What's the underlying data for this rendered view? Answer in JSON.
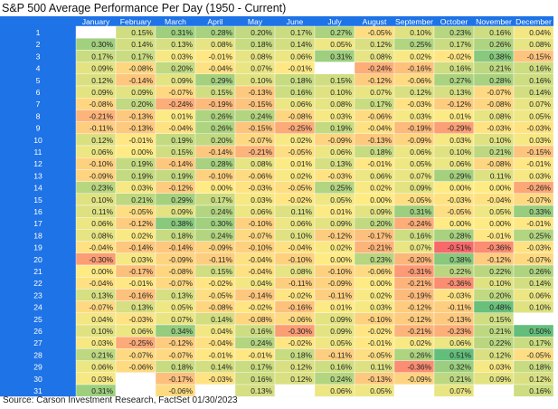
{
  "chart_data": {
    "type": "heatmap",
    "title": "S&P 500 Average Performance Per Day (1950 - Current)",
    "source": "Source: Carson Investment Research, FactSet 01/30/2023",
    "months": [
      "January",
      "February",
      "March",
      "April",
      "May",
      "June",
      "July",
      "August",
      "September",
      "October",
      "November",
      "December"
    ],
    "days": [
      "1",
      "2",
      "3",
      "4",
      "5",
      "6",
      "7",
      "8",
      "9",
      "10",
      "11",
      "12",
      "13",
      "14",
      "15",
      "16",
      "17",
      "18",
      "19",
      "20",
      "21",
      "22",
      "23",
      "24",
      "25",
      "26",
      "27",
      "28",
      "29",
      "30",
      "31"
    ],
    "values": [
      [
        null,
        "0.15%",
        "0.31%",
        "0.28%",
        "0.20%",
        "0.17%",
        "0.27%",
        "-0.05%",
        "0.10%",
        "0.23%",
        "0.16%",
        "0.04%"
      ],
      [
        "0.30%",
        "0.14%",
        "0.13%",
        "0.08%",
        "0.18%",
        "0.14%",
        "0.05%",
        "0.12%",
        "0.25%",
        "0.17%",
        "0.26%",
        "0.08%"
      ],
      [
        "0.17%",
        "0.17%",
        "0.03%",
        "-0.01%",
        "0.08%",
        "0.06%",
        "0.31%",
        "0.08%",
        "0.02%",
        "-0.02%",
        "0.38%",
        "-0.15%"
      ],
      [
        "0.09%",
        "-0.08%",
        "0.20%",
        "-0.04%",
        "0.07%",
        "-0.01%",
        null,
        "-0.24%",
        "-0.16%",
        "0.16%",
        "0.21%",
        "0.16%"
      ],
      [
        "0.12%",
        "-0.14%",
        "0.09%",
        "0.29%",
        "0.10%",
        "0.18%",
        "0.15%",
        "-0.12%",
        "-0.06%",
        "0.27%",
        "0.28%",
        "0.16%"
      ],
      [
        "0.09%",
        "0.09%",
        "-0.07%",
        "0.15%",
        "-0.13%",
        "0.16%",
        "0.10%",
        "0.07%",
        "0.12%",
        "0.13%",
        "-0.07%",
        "0.14%"
      ],
      [
        "-0.08%",
        "0.20%",
        "-0.24%",
        "-0.19%",
        "-0.15%",
        "0.06%",
        "0.08%",
        "0.17%",
        "-0.03%",
        "-0.12%",
        "-0.08%",
        "0.07%"
      ],
      [
        "-0.21%",
        "-0.13%",
        "0.01%",
        "0.26%",
        "0.24%",
        "-0.08%",
        "0.03%",
        "-0.06%",
        "0.03%",
        "0.01%",
        "0.08%",
        "0.05%"
      ],
      [
        "-0.11%",
        "-0.13%",
        "-0.04%",
        "0.26%",
        "-0.15%",
        "-0.25%",
        "0.19%",
        "-0.04%",
        "-0.19%",
        "-0.29%",
        "-0.03%",
        "-0.03%"
      ],
      [
        "0.12%",
        "-0.01%",
        "0.19%",
        "0.20%",
        "-0.07%",
        "0.02%",
        "-0.09%",
        "-0.13%",
        "-0.09%",
        "0.03%",
        "0.10%",
        "0.03%"
      ],
      [
        "0.06%",
        "0.00%",
        "0.15%",
        "-0.14%",
        "-0.21%",
        "-0.05%",
        "0.06%",
        "0.18%",
        "0.06%",
        "0.10%",
        "0.21%",
        "-0.15%"
      ],
      [
        "-0.10%",
        "0.19%",
        "-0.14%",
        "0.28%",
        "0.08%",
        "0.01%",
        "0.13%",
        "-0.01%",
        "0.05%",
        "0.06%",
        "-0.08%",
        "-0.01%"
      ],
      [
        "-0.09%",
        "0.19%",
        "0.19%",
        "-0.10%",
        "-0.06%",
        "0.02%",
        "-0.03%",
        "0.06%",
        "0.07%",
        "0.29%",
        "0.11%",
        "0.03%"
      ],
      [
        "0.23%",
        "0.03%",
        "-0.12%",
        "0.00%",
        "-0.03%",
        "-0.05%",
        "0.25%",
        "0.02%",
        "0.09%",
        "0.00%",
        "0.00%",
        "-0.26%"
      ],
      [
        "0.10%",
        "0.21%",
        "0.29%",
        "0.17%",
        "0.03%",
        "-0.02%",
        "0.05%",
        "0.00%",
        "-0.05%",
        "-0.03%",
        "-0.04%",
        "-0.07%"
      ],
      [
        "0.11%",
        "-0.05%",
        "0.09%",
        "0.24%",
        "0.06%",
        "0.11%",
        "0.01%",
        "0.09%",
        "0.31%",
        "-0.05%",
        "0.05%",
        "0.33%"
      ],
      [
        "0.06%",
        "-0.12%",
        "0.38%",
        "0.30%",
        "-0.10%",
        "0.06%",
        "0.09%",
        "0.20%",
        "-0.24%",
        "0.00%",
        "0.00%",
        "-0.01%"
      ],
      [
        "0.08%",
        "0.02%",
        "0.18%",
        "0.24%",
        "-0.07%",
        "0.10%",
        "-0.12%",
        "-0.17%",
        "0.16%",
        "0.28%",
        "-0.01%",
        "0.25%"
      ],
      [
        "-0.04%",
        "-0.14%",
        "-0.14%",
        "-0.09%",
        "-0.10%",
        "-0.04%",
        "0.02%",
        "-0.21%",
        "0.07%",
        "-0.51%",
        "-0.36%",
        "-0.03%"
      ],
      [
        "-0.30%",
        "0.03%",
        "-0.09%",
        "-0.11%",
        "-0.04%",
        "-0.10%",
        "0.00%",
        "0.23%",
        "-0.20%",
        "0.38%",
        "-0.12%",
        "-0.07%"
      ],
      [
        "0.00%",
        "-0.17%",
        "-0.08%",
        "0.15%",
        "-0.04%",
        "0.08%",
        "-0.10%",
        "-0.06%",
        "-0.31%",
        "0.22%",
        "0.22%",
        "0.26%"
      ],
      [
        "-0.04%",
        "-0.01%",
        "-0.07%",
        "-0.02%",
        "0.04%",
        "-0.11%",
        "-0.09%",
        "0.00%",
        "-0.21%",
        "-0.36%",
        "0.10%",
        "0.14%"
      ],
      [
        "0.13%",
        "-0.16%",
        "0.13%",
        "-0.05%",
        "-0.14%",
        "-0.02%",
        "-0.11%",
        "0.02%",
        "-0.19%",
        "-0.03%",
        "0.20%",
        "0.06%"
      ],
      [
        "-0.07%",
        "0.13%",
        "0.05%",
        "-0.08%",
        "-0.02%",
        "-0.16%",
        "0.01%",
        "0.03%",
        "-0.12%",
        "-0.11%",
        "0.48%",
        "0.10%"
      ],
      [
        "0.04%",
        "-0.03%",
        "0.07%",
        "0.14%",
        "-0.08%",
        "-0.06%",
        "0.09%",
        "-0.10%",
        "-0.12%",
        "-0.13%",
        "0.15%",
        null
      ],
      [
        "0.10%",
        "0.06%",
        "0.34%",
        "0.04%",
        "0.16%",
        "-0.30%",
        "0.09%",
        "-0.02%",
        "-0.21%",
        "-0.23%",
        "0.21%",
        "0.50%"
      ],
      [
        "0.03%",
        "-0.25%",
        "-0.12%",
        "-0.04%",
        "0.24%",
        "-0.02%",
        "0.05%",
        "-0.01%",
        "0.02%",
        "0.06%",
        "0.22%",
        "0.17%"
      ],
      [
        "0.21%",
        "-0.07%",
        "-0.07%",
        "-0.01%",
        "-0.01%",
        "0.18%",
        "-0.11%",
        "-0.05%",
        "0.26%",
        "0.51%",
        "0.12%",
        "-0.05%"
      ],
      [
        "0.06%",
        "-0.06%",
        "0.18%",
        "0.14%",
        "0.17%",
        "0.12%",
        "0.16%",
        "0.11%",
        "-0.36%",
        "0.32%",
        "0.03%",
        "0.18%"
      ],
      [
        "0.03%",
        null,
        "-0.17%",
        "-0.03%",
        "0.16%",
        "0.12%",
        "0.24%",
        "-0.13%",
        "-0.09%",
        "0.21%",
        "0.09%",
        "0.12%"
      ],
      [
        "0.31%",
        null,
        "-0.06%",
        null,
        "0.13%",
        null,
        "0.06%",
        "0.05%",
        null,
        "0.07%",
        null,
        "0.16%"
      ]
    ],
    "color_scale": {
      "min": -0.5,
      "mid": 0,
      "max": 0.5,
      "neg_color": "#f8696b",
      "mid_color": "#ffeb84",
      "pos_color": "#63be7b"
    }
  },
  "colors": {
    "header_bg": "#1e73e6",
    "header_text": "#ffffff",
    "empty_cell": "#ffffff"
  }
}
